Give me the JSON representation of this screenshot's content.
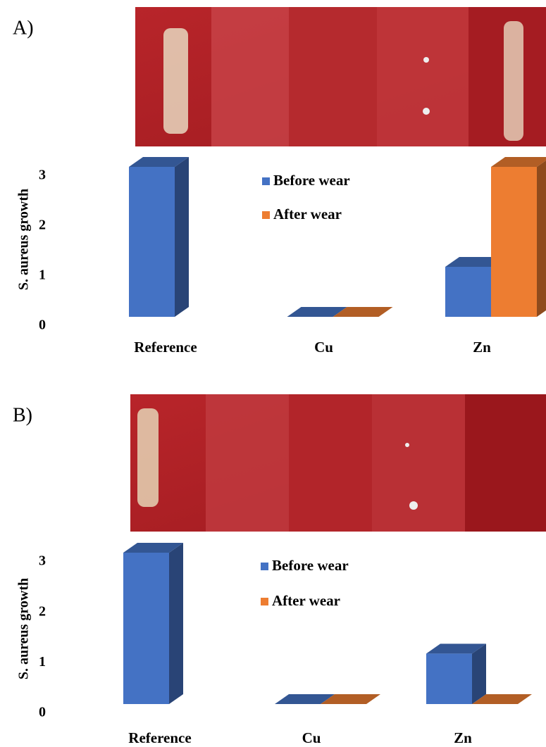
{
  "chart_data": [
    {
      "type": "bar3d",
      "label": "A)",
      "ylabel": "S. aureus growth",
      "categories": [
        "Reference",
        "Cu",
        "Zn"
      ],
      "series": [
        {
          "name": "Before wear",
          "color": "#4472c4",
          "values": [
            3,
            0,
            1
          ]
        },
        {
          "name": "After wear",
          "color": "#ed7d31",
          "values": [
            null,
            0,
            3
          ]
        }
      ],
      "ylim": [
        0,
        3
      ],
      "yticks": [
        0,
        1,
        2,
        3
      ]
    },
    {
      "type": "bar3d",
      "label": "B)",
      "ylabel": "S. aureus growth",
      "categories": [
        "Reference",
        "Cu",
        "Zn"
      ],
      "series": [
        {
          "name": "Before wear",
          "color": "#4472c4",
          "values": [
            3,
            0,
            1
          ]
        },
        {
          "name": "After wear",
          "color": "#ed7d31",
          "values": [
            null,
            0,
            0
          ]
        }
      ],
      "ylim": [
        0,
        3
      ],
      "yticks": [
        0,
        1,
        2,
        3
      ]
    }
  ]
}
